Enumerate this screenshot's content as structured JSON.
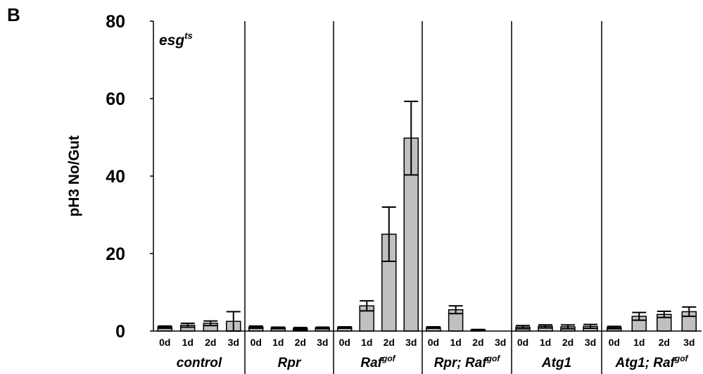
{
  "panel_label": "B",
  "chart_data": {
    "type": "grouped-bar",
    "ylabel": "pH3 No/Gut",
    "annotation": {
      "text": "esg",
      "sup": "ts"
    },
    "ylim": [
      0,
      80
    ],
    "yticks": [
      0,
      20,
      40,
      60,
      80
    ],
    "bar_color": "#c0c0c0",
    "groups": [
      {
        "name": "control",
        "categories": [
          "0d",
          "1d",
          "2d",
          "3d"
        ],
        "values": [
          1.0,
          1.5,
          2.0,
          2.5
        ],
        "errors": [
          0.3,
          0.5,
          0.6,
          2.5
        ]
      },
      {
        "name": "Rpr",
        "categories": [
          "0d",
          "1d",
          "2d",
          "3d"
        ],
        "values": [
          1.0,
          0.8,
          0.6,
          0.8
        ],
        "errors": [
          0.3,
          0.2,
          0.3,
          0.2
        ]
      },
      {
        "name": "Raf",
        "sup": "gof",
        "categories": [
          "0d",
          "1d",
          "2d",
          "3d"
        ],
        "values": [
          0.9,
          6.5,
          25,
          49.8
        ],
        "errors": [
          0.2,
          1.3,
          7,
          9.5
        ]
      },
      {
        "name": "Rpr; Raf",
        "sup": "gof",
        "categories": [
          "0d",
          "1d",
          "2d",
          "3d"
        ],
        "values": [
          0.9,
          5.5,
          0.3,
          0
        ],
        "errors": [
          0.2,
          1.0,
          0.1,
          0
        ]
      },
      {
        "name": "Atg1",
        "categories": [
          "0d",
          "1d",
          "2d",
          "3d"
        ],
        "values": [
          1.0,
          1.2,
          1.1,
          1.2
        ],
        "errors": [
          0.4,
          0.4,
          0.5,
          0.5
        ]
      },
      {
        "name": "Atg1; Raf",
        "sup": "gof",
        "categories": [
          "0d",
          "1d",
          "2d",
          "3d"
        ],
        "values": [
          0.9,
          3.8,
          4.3,
          5.0
        ],
        "errors": [
          0.3,
          1.0,
          0.8,
          1.2
        ]
      }
    ]
  }
}
